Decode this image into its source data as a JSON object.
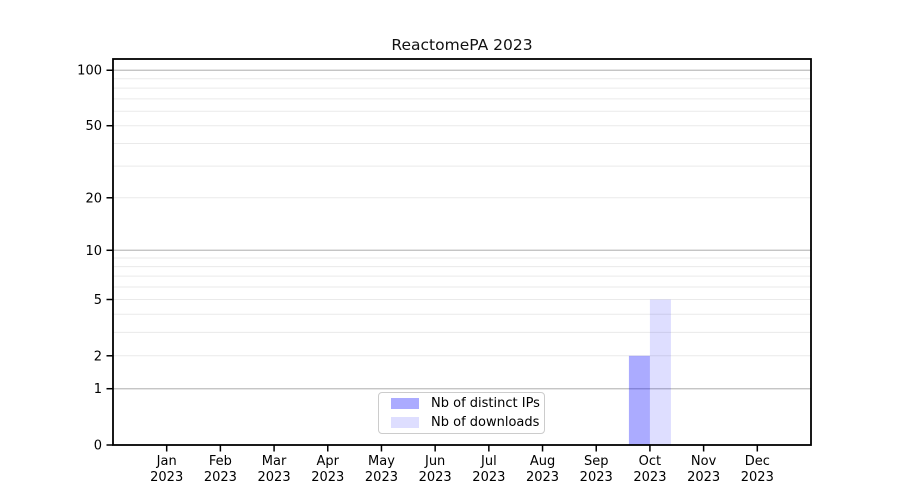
{
  "chart_data": {
    "type": "bar",
    "title": "ReactomePA 2023",
    "x_tick_labels": [
      {
        "month": "Jan",
        "year": "2023"
      },
      {
        "month": "Feb",
        "year": "2023"
      },
      {
        "month": "Mar",
        "year": "2023"
      },
      {
        "month": "Apr",
        "year": "2023"
      },
      {
        "month": "May",
        "year": "2023"
      },
      {
        "month": "Jun",
        "year": "2023"
      },
      {
        "month": "Jul",
        "year": "2023"
      },
      {
        "month": "Aug",
        "year": "2023"
      },
      {
        "month": "Sep",
        "year": "2023"
      },
      {
        "month": "Oct",
        "year": "2023"
      },
      {
        "month": "Nov",
        "year": "2023"
      },
      {
        "month": "Dec",
        "year": "2023"
      }
    ],
    "series": [
      {
        "name": "Nb of distinct IPs",
        "color": "rgba(0,0,255,0.33)",
        "values": [
          0,
          0,
          0,
          0,
          0,
          0,
          0,
          0,
          0,
          2,
          0,
          0
        ]
      },
      {
        "name": "Nb of downloads",
        "color": "rgba(0,0,255,0.13)",
        "values": [
          0,
          0,
          0,
          0,
          0,
          0,
          0,
          0,
          0,
          5,
          0,
          0
        ]
      }
    ],
    "y_ticks": [
      0,
      1,
      2,
      5,
      10,
      20,
      50,
      100
    ],
    "y_scale": "log1p",
    "ylim": [
      0,
      115
    ],
    "grid": {
      "orientation": "horizontal",
      "major_lines_at": [
        1,
        10,
        100
      ],
      "minor_lines_at": [
        2,
        3,
        4,
        5,
        6,
        7,
        8,
        9,
        20,
        30,
        40,
        50,
        60,
        70,
        80,
        90
      ]
    },
    "legend": {
      "position": "inside-bottom-center",
      "items": [
        "Nb of distinct IPs",
        "Nb of downloads"
      ]
    },
    "colors": {
      "axis": "#000000",
      "grid_major": "#bdbdbd",
      "grid_minor": "#eaeaea",
      "legend_border": "#cccccc",
      "background": "#ffffff"
    }
  }
}
